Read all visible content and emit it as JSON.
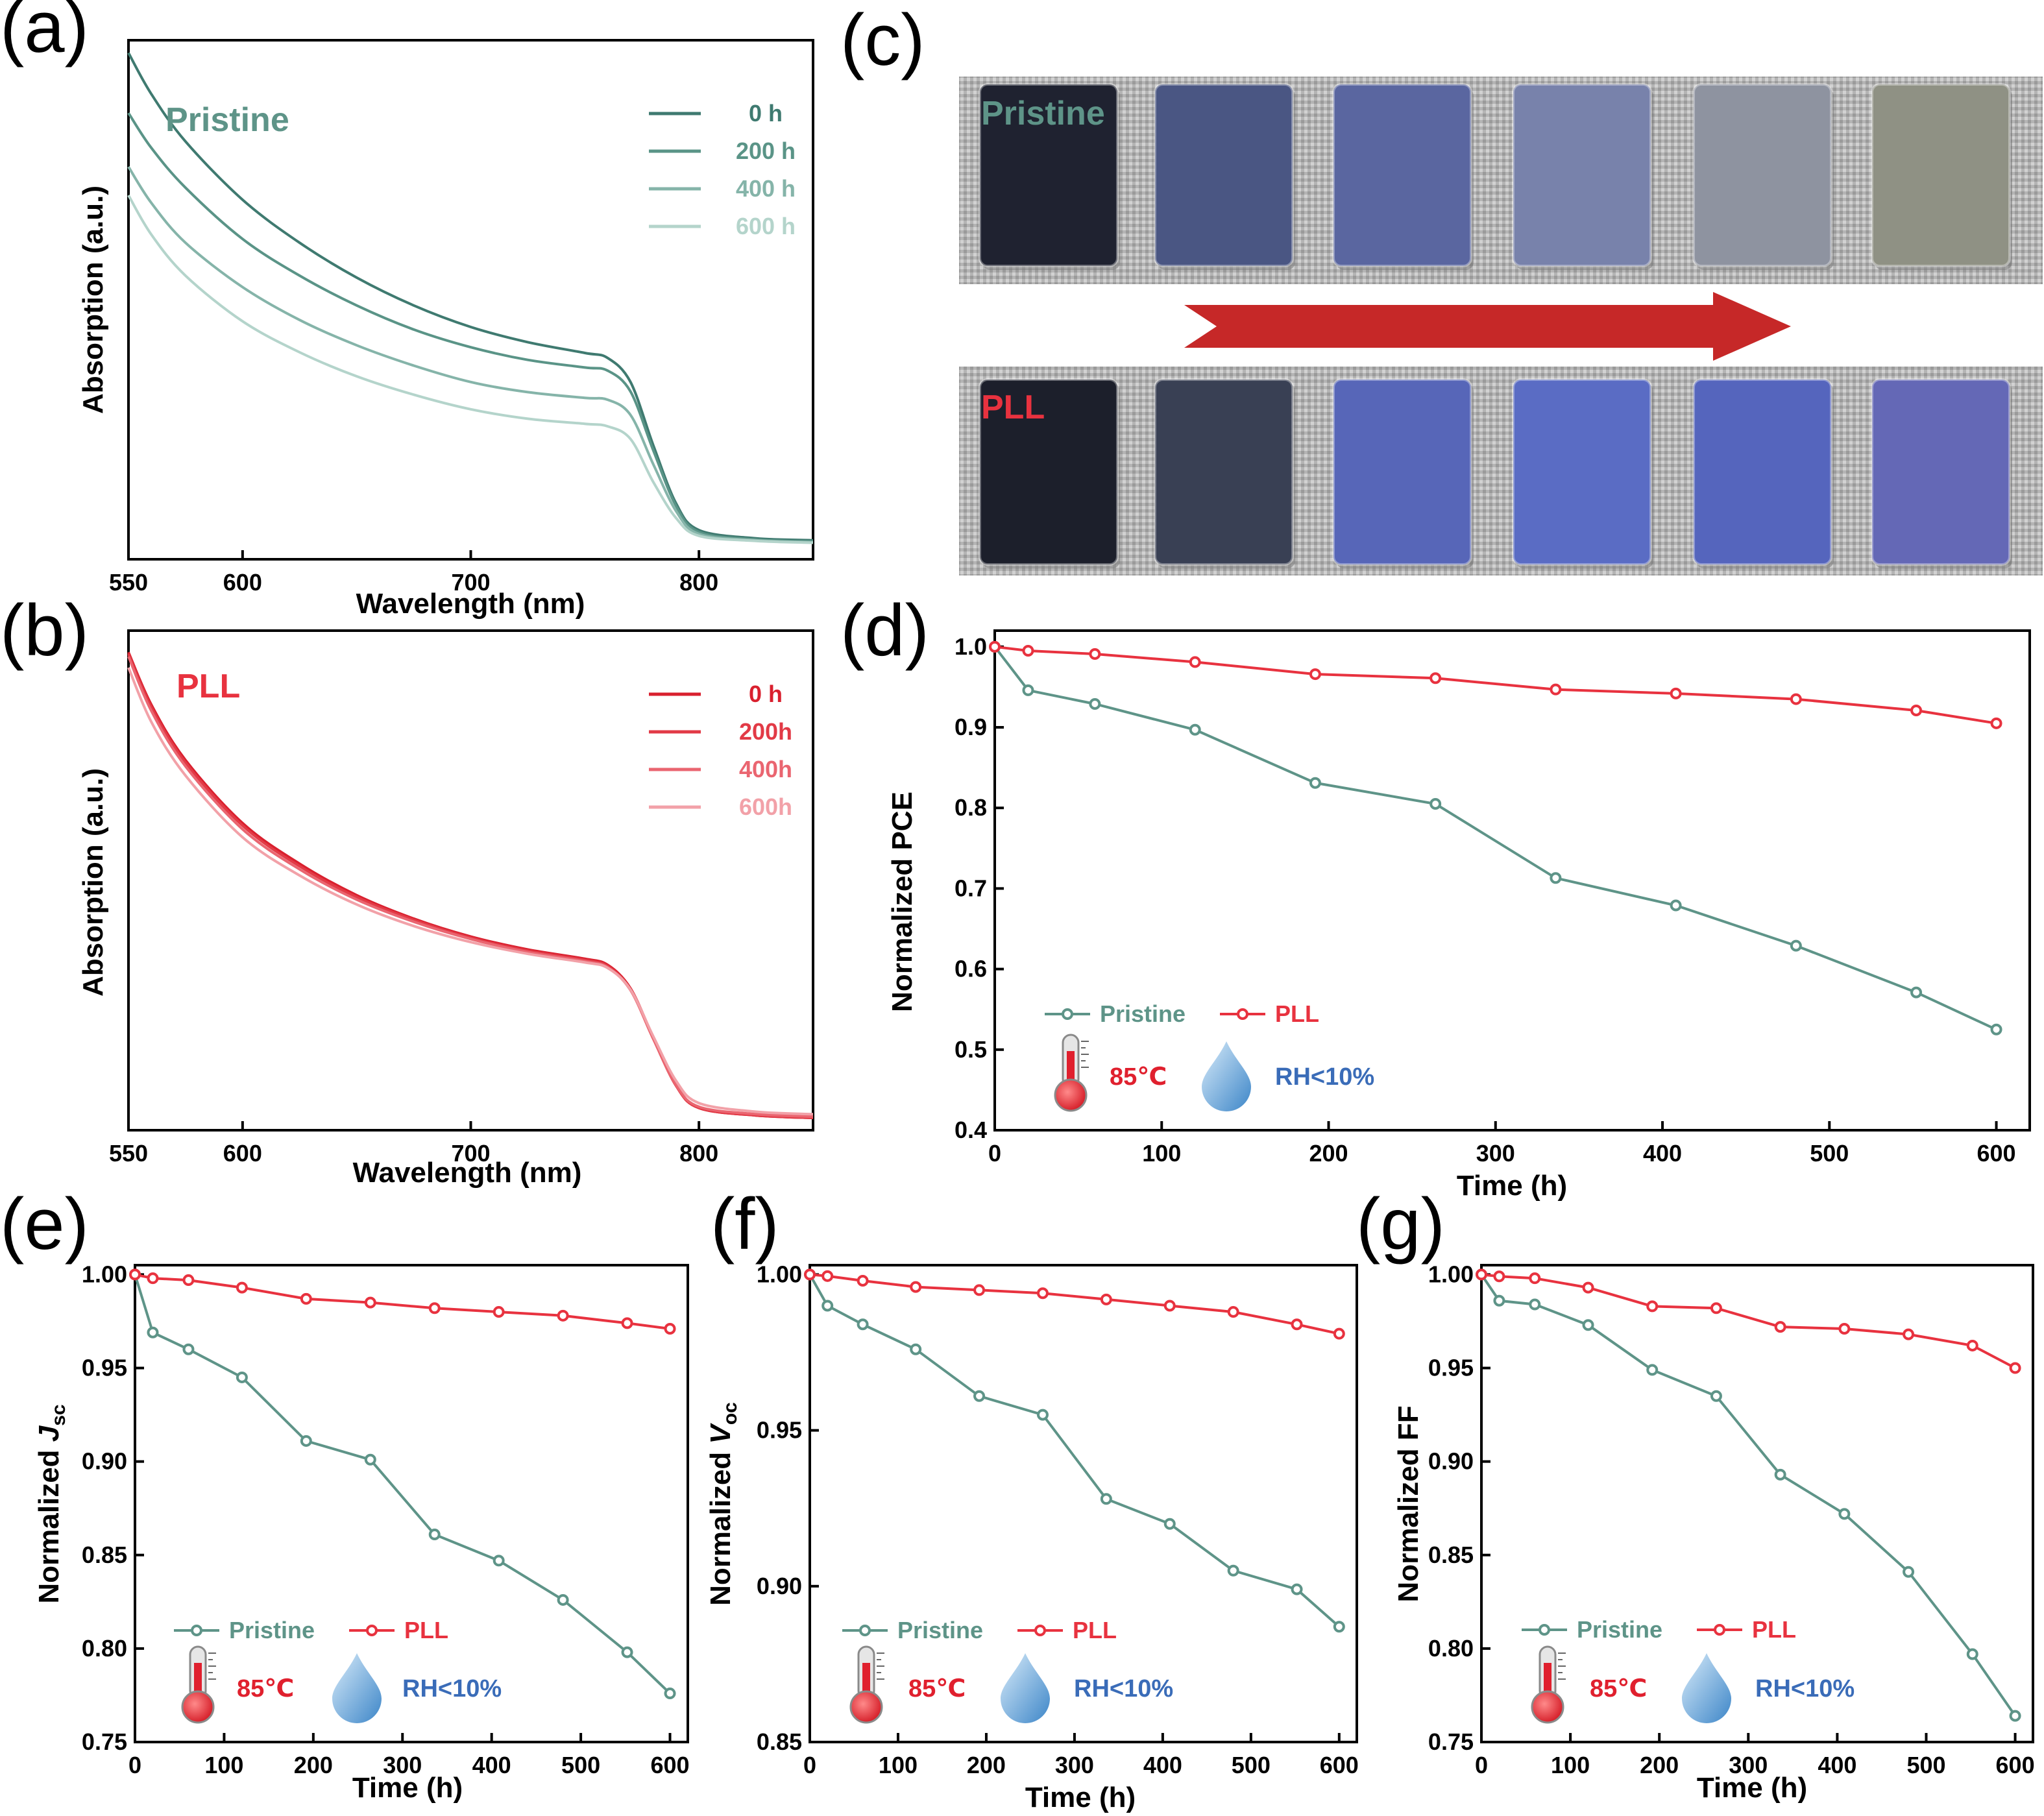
{
  "colors": {
    "pristine": "#5e9488",
    "pll": "#e8323f",
    "pristine_spectra": [
      "#3f7a70",
      "#5a9487",
      "#85b4a9",
      "#b4d4cb"
    ],
    "pll_spectra": [
      "#d9202e",
      "#e23a46",
      "#ea6570",
      "#f2a1a8"
    ],
    "arrow": "#c62828",
    "rh_text": "#3a6cb8",
    "temp_text": "#e0202e"
  },
  "panels": {
    "a": "(a)",
    "b": "(b)",
    "c": "(c)",
    "d": "(d)",
    "e": "(e)",
    "f": "(f)",
    "g": "(g)"
  },
  "conditions": {
    "temperature": "85℃",
    "humidity": "RH<10%"
  },
  "icons": [
    "thermometer-icon",
    "water-drop-icon"
  ],
  "photos": {
    "top_label": "Pristine",
    "bottom_label": "PLL",
    "arrow_direction": "right",
    "pristine_film_colors": [
      "#1f2230",
      "#4a5683",
      "#5a66a0",
      "#7882ab",
      "#8e93a0",
      "#8f9184"
    ],
    "pll_film_colors": [
      "#1c1f2b",
      "#394054",
      "#5766b8",
      "#5a6cc4",
      "#5565bd",
      "#6468b6"
    ]
  },
  "chart_data": [
    {
      "id": "a",
      "type": "line",
      "title": "",
      "inset_label": "Pristine",
      "xlabel": "Wavelength (nm)",
      "ylabel": "Absorption (a.u.)",
      "xlim": [
        550,
        850
      ],
      "xticks": [
        550,
        600,
        700,
        800
      ],
      "yticks_shown": false,
      "legend_position": "top-right",
      "series": [
        {
          "name": "0 h",
          "x": [
            550,
            560,
            575,
            600,
            625,
            650,
            675,
            700,
            725,
            750,
            760,
            770,
            780,
            790,
            800,
            825,
            850
          ],
          "y": [
            1.0,
            0.935,
            0.86,
            0.768,
            0.7,
            0.645,
            0.601,
            0.567,
            0.543,
            0.526,
            0.518,
            0.48,
            0.38,
            0.288,
            0.246,
            0.233,
            0.23
          ]
        },
        {
          "name": "200 h",
          "x": [
            550,
            560,
            575,
            600,
            625,
            650,
            675,
            700,
            725,
            750,
            760,
            770,
            780,
            790,
            800,
            825,
            850
          ],
          "y": [
            0.905,
            0.85,
            0.787,
            0.706,
            0.648,
            0.601,
            0.563,
            0.535,
            0.515,
            0.503,
            0.498,
            0.465,
            0.372,
            0.284,
            0.243,
            0.231,
            0.228
          ]
        },
        {
          "name": "400 h",
          "x": [
            550,
            560,
            575,
            600,
            625,
            650,
            675,
            700,
            725,
            750,
            760,
            770,
            780,
            790,
            800,
            825,
            850
          ],
          "y": [
            0.82,
            0.763,
            0.7,
            0.63,
            0.578,
            0.538,
            0.506,
            0.48,
            0.464,
            0.455,
            0.452,
            0.428,
            0.35,
            0.276,
            0.24,
            0.23,
            0.227
          ]
        },
        {
          "name": "600 h",
          "x": [
            550,
            560,
            575,
            600,
            625,
            650,
            675,
            700,
            725,
            750,
            760,
            770,
            780,
            790,
            800,
            825,
            850
          ],
          "y": [
            0.775,
            0.713,
            0.648,
            0.576,
            0.527,
            0.489,
            0.46,
            0.437,
            0.422,
            0.414,
            0.41,
            0.39,
            0.322,
            0.265,
            0.237,
            0.229,
            0.226
          ]
        }
      ]
    },
    {
      "id": "b",
      "type": "line",
      "title": "",
      "inset_label": "PLL",
      "xlabel": "Wavelength (nm)",
      "ylabel": "Absorption (a.u.)",
      "xlim": [
        550,
        850
      ],
      "xticks": [
        550,
        600,
        700,
        800
      ],
      "yticks_shown": false,
      "legend_position": "top-right",
      "series": [
        {
          "name": "0 h",
          "x": [
            550,
            560,
            575,
            600,
            625,
            650,
            675,
            700,
            725,
            750,
            760,
            770,
            780,
            790,
            800,
            825,
            850
          ],
          "y": [
            0.965,
            0.88,
            0.79,
            0.688,
            0.622,
            0.571,
            0.533,
            0.504,
            0.483,
            0.468,
            0.458,
            0.42,
            0.34,
            0.262,
            0.226,
            0.214,
            0.21
          ]
        },
        {
          "name": "200h",
          "x": [
            550,
            560,
            575,
            600,
            625,
            650,
            675,
            700,
            725,
            750,
            760,
            770,
            780,
            790,
            800,
            825,
            850
          ],
          "y": [
            0.962,
            0.876,
            0.786,
            0.684,
            0.618,
            0.568,
            0.531,
            0.502,
            0.481,
            0.466,
            0.456,
            0.418,
            0.338,
            0.262,
            0.226,
            0.214,
            0.21
          ]
        },
        {
          "name": "400h",
          "x": [
            550,
            560,
            575,
            600,
            625,
            650,
            675,
            700,
            725,
            750,
            760,
            770,
            780,
            790,
            800,
            825,
            850
          ],
          "y": [
            0.958,
            0.87,
            0.78,
            0.678,
            0.613,
            0.564,
            0.528,
            0.5,
            0.479,
            0.464,
            0.454,
            0.417,
            0.338,
            0.263,
            0.228,
            0.216,
            0.212
          ]
        },
        {
          "name": "600h",
          "x": [
            550,
            560,
            575,
            600,
            625,
            650,
            675,
            700,
            725,
            750,
            760,
            770,
            780,
            790,
            800,
            825,
            850
          ],
          "y": [
            0.94,
            0.852,
            0.765,
            0.665,
            0.603,
            0.556,
            0.521,
            0.495,
            0.476,
            0.462,
            0.453,
            0.418,
            0.342,
            0.27,
            0.234,
            0.22,
            0.216
          ]
        }
      ]
    },
    {
      "id": "d",
      "type": "line",
      "title": "",
      "xlabel": "Time (h)",
      "ylabel": "Normalized PCE",
      "xlim": [
        0,
        620
      ],
      "ylim": [
        0.4,
        1.02
      ],
      "xticks": [
        0,
        100,
        200,
        300,
        400,
        500,
        600
      ],
      "yticks": [
        0.4,
        0.5,
        0.6,
        0.7,
        0.8,
        0.9,
        1.0
      ],
      "ytick_labels": [
        "0.4",
        "0.5",
        "0.6",
        "0.7",
        "0.8",
        "0.9",
        "1.0"
      ],
      "legend_position": "bottom-left",
      "series": [
        {
          "name": "Pristine",
          "x": [
            0,
            20,
            60,
            120,
            192,
            264,
            336,
            408,
            480,
            552,
            600
          ],
          "y": [
            1.0,
            0.946,
            0.929,
            0.897,
            0.831,
            0.805,
            0.713,
            0.679,
            0.629,
            0.571,
            0.525
          ]
        },
        {
          "name": "PLL",
          "x": [
            0,
            20,
            60,
            120,
            192,
            264,
            336,
            408,
            480,
            552,
            600
          ],
          "y": [
            1.0,
            0.995,
            0.991,
            0.981,
            0.966,
            0.961,
            0.947,
            0.942,
            0.935,
            0.921,
            0.905
          ]
        }
      ]
    },
    {
      "id": "e",
      "type": "line",
      "title": "",
      "xlabel": "Time (h)",
      "ylabel_main": "Normalized ",
      "ylabel_italic": "J",
      "ylabel_sub": "sc",
      "xlim": [
        0,
        620
      ],
      "ylim": [
        0.75,
        1.005
      ],
      "xticks": [
        0,
        100,
        200,
        300,
        400,
        500,
        600
      ],
      "yticks": [
        0.75,
        0.8,
        0.85,
        0.9,
        0.95,
        1.0
      ],
      "ytick_labels": [
        "0.75",
        "0.80",
        "0.85",
        "0.90",
        "0.95",
        "1.00"
      ],
      "legend_position": "bottom-left",
      "series": [
        {
          "name": "Pristine",
          "x": [
            0,
            20,
            60,
            120,
            192,
            264,
            336,
            408,
            480,
            552,
            600
          ],
          "y": [
            1.0,
            0.969,
            0.96,
            0.945,
            0.911,
            0.901,
            0.861,
            0.847,
            0.826,
            0.798,
            0.776
          ]
        },
        {
          "name": "PLL",
          "x": [
            0,
            20,
            60,
            120,
            192,
            264,
            336,
            408,
            480,
            552,
            600
          ],
          "y": [
            1.0,
            0.998,
            0.997,
            0.993,
            0.987,
            0.985,
            0.982,
            0.98,
            0.978,
            0.974,
            0.971
          ]
        }
      ]
    },
    {
      "id": "f",
      "type": "line",
      "title": "",
      "xlabel": "Time (h)",
      "ylabel_main": "Normalized ",
      "ylabel_italic": "V",
      "ylabel_sub": "oc",
      "xlim": [
        0,
        620
      ],
      "ylim": [
        0.85,
        1.003
      ],
      "xticks": [
        0,
        100,
        200,
        300,
        400,
        500,
        600
      ],
      "yticks": [
        0.85,
        0.9,
        0.95,
        1.0
      ],
      "ytick_labels": [
        "0.85",
        "0.90",
        "0.95",
        "1.00"
      ],
      "legend_position": "bottom-left",
      "series": [
        {
          "name": "Pristine",
          "x": [
            0,
            20,
            60,
            120,
            192,
            264,
            336,
            408,
            480,
            552,
            600
          ],
          "y": [
            1.0,
            0.99,
            0.984,
            0.976,
            0.961,
            0.955,
            0.928,
            0.92,
            0.905,
            0.899,
            0.887
          ]
        },
        {
          "name": "PLL",
          "x": [
            0,
            20,
            60,
            120,
            192,
            264,
            336,
            408,
            480,
            552,
            600
          ],
          "y": [
            1.0,
            0.9995,
            0.998,
            0.996,
            0.995,
            0.994,
            0.992,
            0.99,
            0.988,
            0.984,
            0.981
          ]
        }
      ]
    },
    {
      "id": "g",
      "type": "line",
      "title": "",
      "xlabel": "Time (h)",
      "ylabel": "Normalized FF",
      "xlim": [
        0,
        620
      ],
      "ylim": [
        0.75,
        1.005
      ],
      "xticks": [
        0,
        100,
        200,
        300,
        400,
        500,
        600
      ],
      "yticks": [
        0.75,
        0.8,
        0.85,
        0.9,
        0.95,
        1.0
      ],
      "ytick_labels": [
        "0.75",
        "0.80",
        "0.85",
        "0.90",
        "0.95",
        "1.00"
      ],
      "legend_position": "bottom-left",
      "series": [
        {
          "name": "Pristine",
          "x": [
            0,
            20,
            60,
            120,
            192,
            264,
            336,
            408,
            480,
            552,
            600
          ],
          "y": [
            1.0,
            0.986,
            0.984,
            0.973,
            0.949,
            0.935,
            0.893,
            0.872,
            0.841,
            0.797,
            0.764
          ]
        },
        {
          "name": "PLL",
          "x": [
            0,
            20,
            60,
            120,
            192,
            264,
            336,
            408,
            480,
            552,
            600
          ],
          "y": [
            1.0,
            0.999,
            0.998,
            0.993,
            0.983,
            0.982,
            0.972,
            0.971,
            0.968,
            0.962,
            0.95
          ]
        }
      ]
    }
  ]
}
